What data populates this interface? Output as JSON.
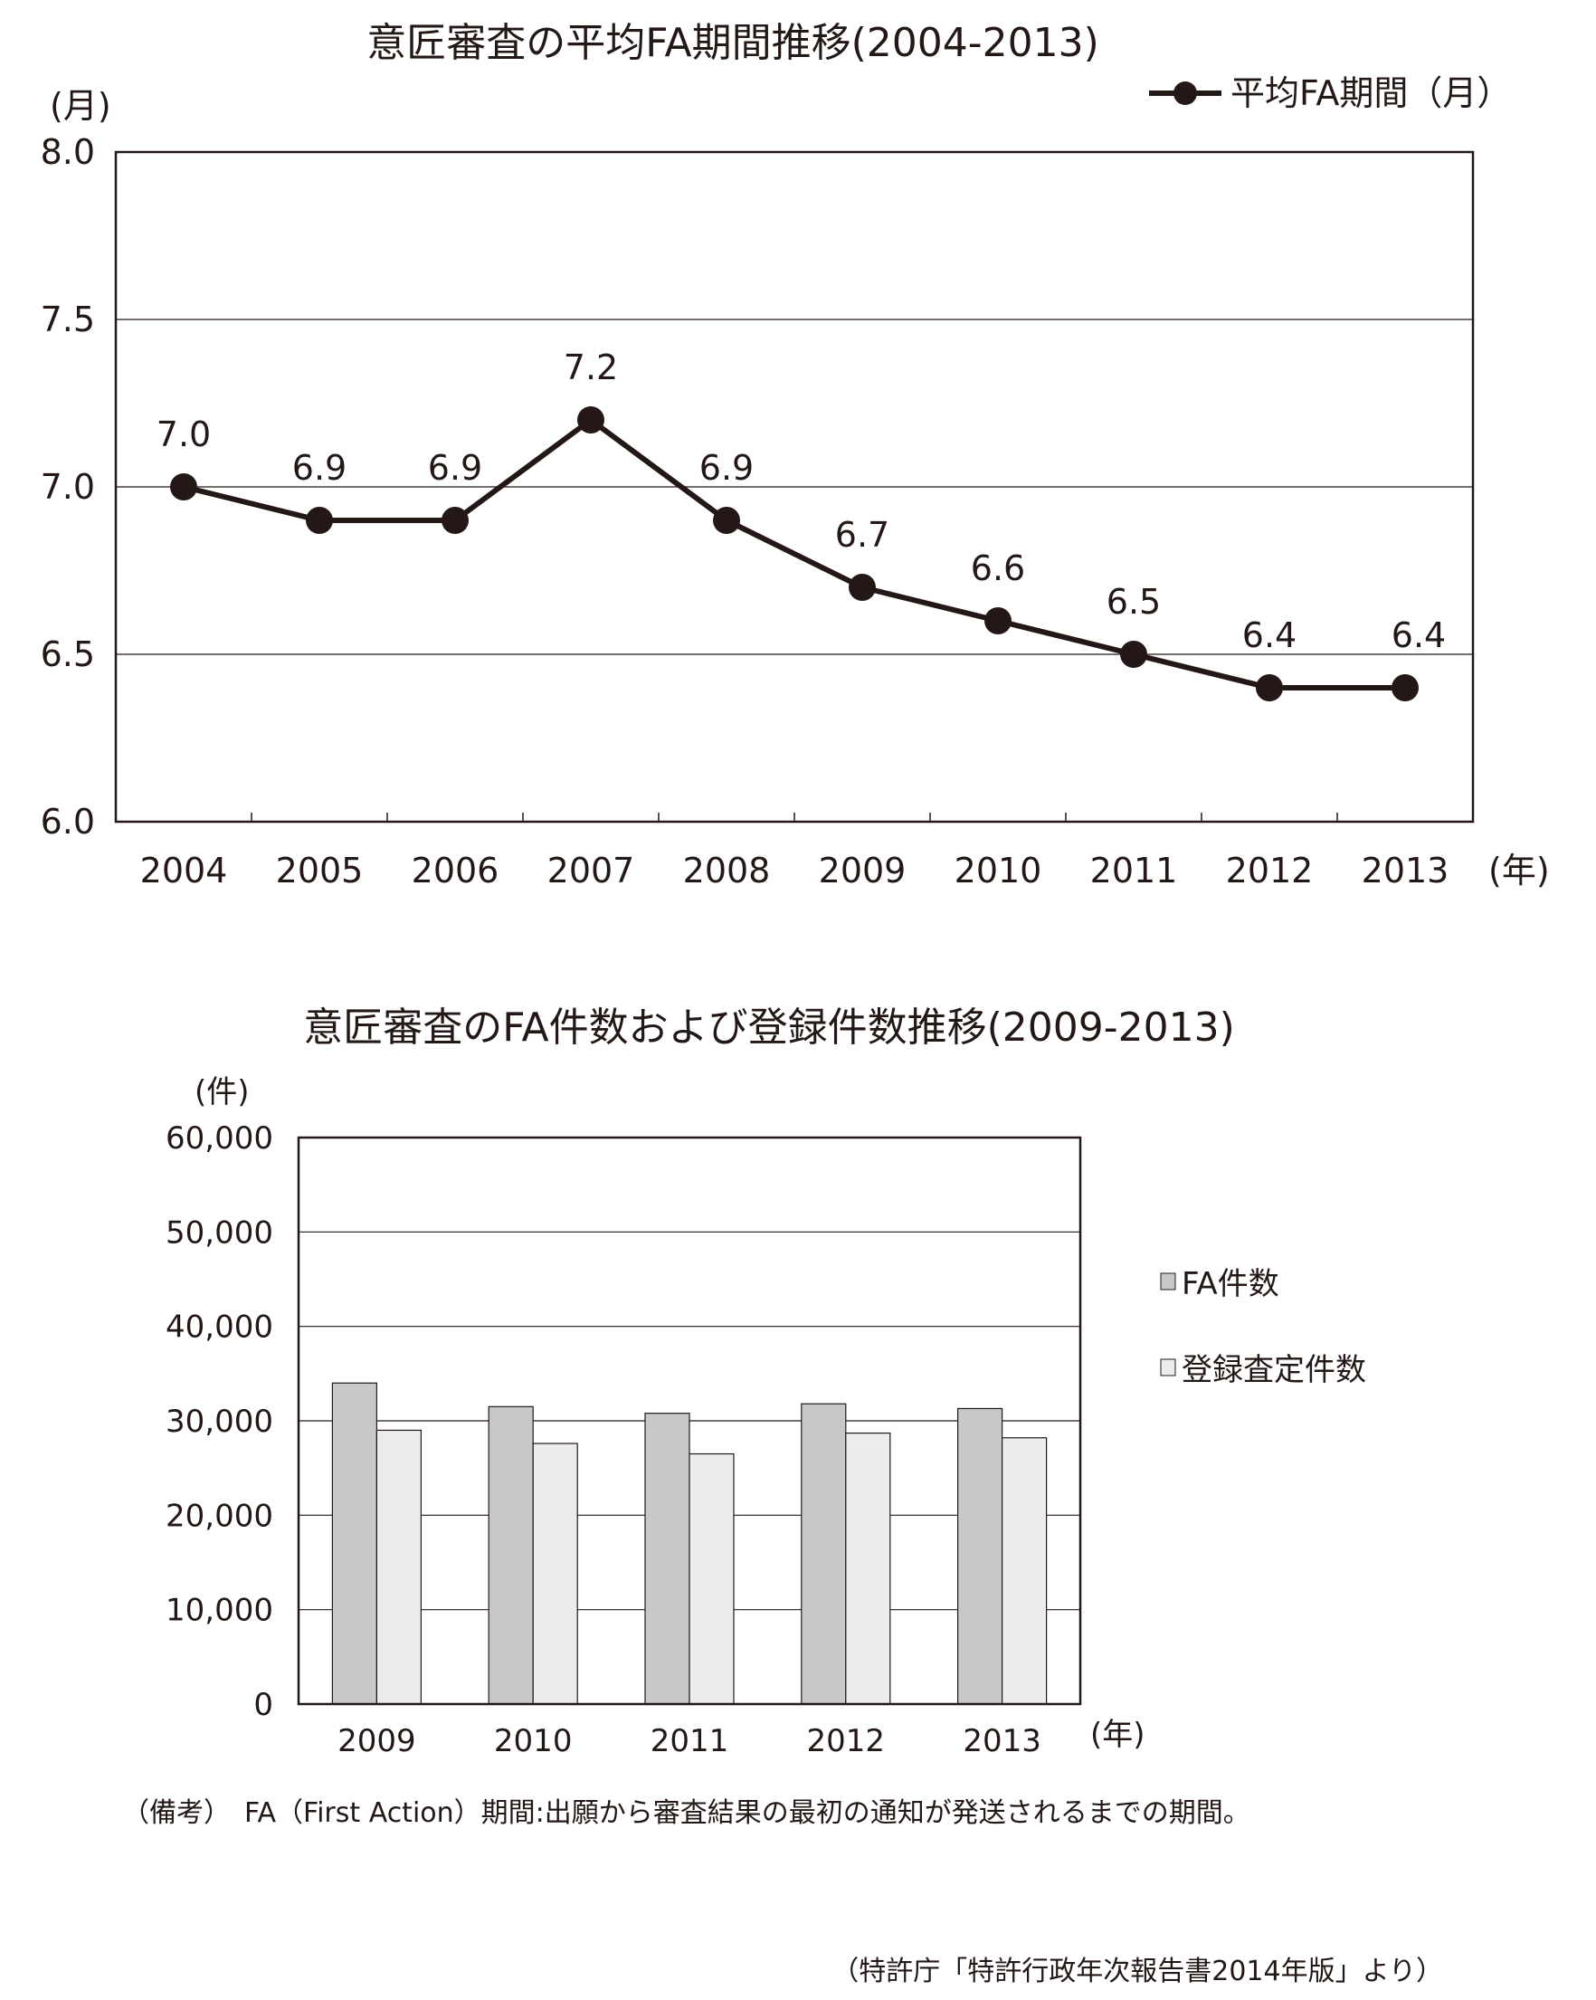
{
  "chart_data": [
    {
      "type": "line",
      "title": "意匠審査の平均FA期間推移(2004-2013)",
      "ylabel": "(月)",
      "xlabel": "(年)",
      "categories": [
        "2004",
        "2005",
        "2006",
        "2007",
        "2008",
        "2009",
        "2010",
        "2011",
        "2012",
        "2013"
      ],
      "series": [
        {
          "name": "平均FA期間（月）",
          "values": [
            7.0,
            6.9,
            6.9,
            7.2,
            6.9,
            6.7,
            6.6,
            6.5,
            6.4,
            6.4
          ]
        }
      ],
      "data_labels": [
        "7.0",
        "6.9",
        "6.9",
        "7.2",
        "6.9",
        "6.7",
        "6.6",
        "6.5",
        "6.4",
        "6.4"
      ],
      "yticks": [
        "6.0",
        "6.5",
        "7.0",
        "7.5",
        "8.0"
      ],
      "ylim": [
        6.0,
        8.0
      ],
      "grid": true,
      "legend_position": "top-right",
      "line_color": "#231815"
    },
    {
      "type": "bar",
      "title": "意匠審査のFA件数および登録件数推移(2009-2013)",
      "ylabel": "(件)",
      "xlabel": "(年)",
      "categories": [
        "2009",
        "2010",
        "2011",
        "2012",
        "2013"
      ],
      "series": [
        {
          "name": "FA件数",
          "values": [
            34000,
            31500,
            30800,
            31800,
            31300
          ],
          "color": "#c8c8c8"
        },
        {
          "name": "登録査定件数",
          "values": [
            29000,
            27600,
            26500,
            28700,
            28200
          ],
          "color": "#ececec"
        }
      ],
      "yticks": [
        "0",
        "10,000",
        "20,000",
        "30,000",
        "40,000",
        "50,000",
        "60,000"
      ],
      "ylim": [
        0,
        60000
      ],
      "grid": true,
      "legend_position": "right"
    }
  ],
  "note": "（備考）　FA（First Action）期間:出願から審査結果の最初の通知が発送されるまでの期間。",
  "source": "（特許庁「特許行政年次報告書2014年版」より）"
}
